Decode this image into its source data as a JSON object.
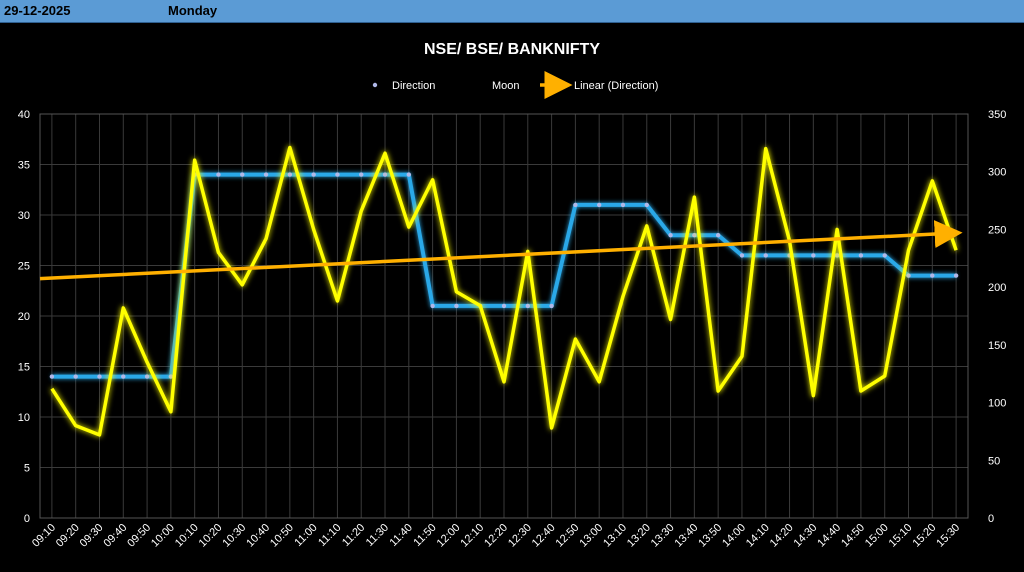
{
  "header": {
    "date": "29-12-2025",
    "day": "Monday"
  },
  "colors": {
    "header_bg": "#5b9bd5",
    "direction": "#29a8e8",
    "moon": "#ffff00",
    "linear": "#ffb000",
    "grid": "#3a3a3a",
    "text": "#ffffff"
  },
  "chart_data": {
    "type": "line",
    "title": "NSE/ BSE/ BANKNIFTY",
    "legend": {
      "position": "top",
      "entries": [
        "Direction",
        "Moon",
        "Linear (Direction)"
      ]
    },
    "grid": true,
    "x": [
      "09:10",
      "09:20",
      "09:30",
      "09:40",
      "09:50",
      "10:00",
      "10:10",
      "10:20",
      "10:30",
      "10:40",
      "10:50",
      "11:00",
      "11:10",
      "11:20",
      "11:30",
      "11:40",
      "11:50",
      "12:00",
      "12:10",
      "12:20",
      "12:30",
      "12:40",
      "12:50",
      "13:00",
      "13:10",
      "13:20",
      "13:30",
      "13:40",
      "13:50",
      "14:00",
      "14:10",
      "14:20",
      "14:30",
      "14:40",
      "14:50",
      "15:00",
      "15:10",
      "15:20",
      "15:30"
    ],
    "y_left": {
      "ylim": [
        0,
        40
      ],
      "ticks": [
        0,
        5,
        10,
        15,
        20,
        25,
        30,
        35,
        40
      ]
    },
    "y_right": {
      "ylim": [
        0,
        350
      ],
      "ticks": [
        0,
        50,
        100,
        150,
        200,
        250,
        300,
        350
      ]
    },
    "series": [
      {
        "name": "Direction",
        "axis": "left",
        "values": [
          14,
          14,
          14,
          14,
          14,
          14,
          34,
          34,
          34,
          34,
          34,
          34,
          34,
          34,
          34,
          34,
          21,
          21,
          21,
          21,
          21,
          21,
          31,
          31,
          31,
          31,
          28,
          28,
          28,
          26,
          26,
          26,
          26,
          26,
          26,
          26,
          24,
          24,
          24
        ]
      },
      {
        "name": "Moon",
        "axis": "right",
        "values": [
          112,
          80,
          72,
          182,
          135,
          92,
          310,
          230,
          202,
          242,
          321,
          250,
          188,
          266,
          316,
          252,
          293,
          196,
          184,
          118,
          231,
          78,
          155,
          118,
          192,
          253,
          172,
          278,
          110,
          140,
          320,
          240,
          106,
          250,
          110,
          123,
          232,
          292,
          232
        ]
      },
      {
        "name": "Linear (Direction)",
        "axis": "left",
        "trend": "linear",
        "start": 23.7,
        "end": 28.2
      }
    ]
  }
}
